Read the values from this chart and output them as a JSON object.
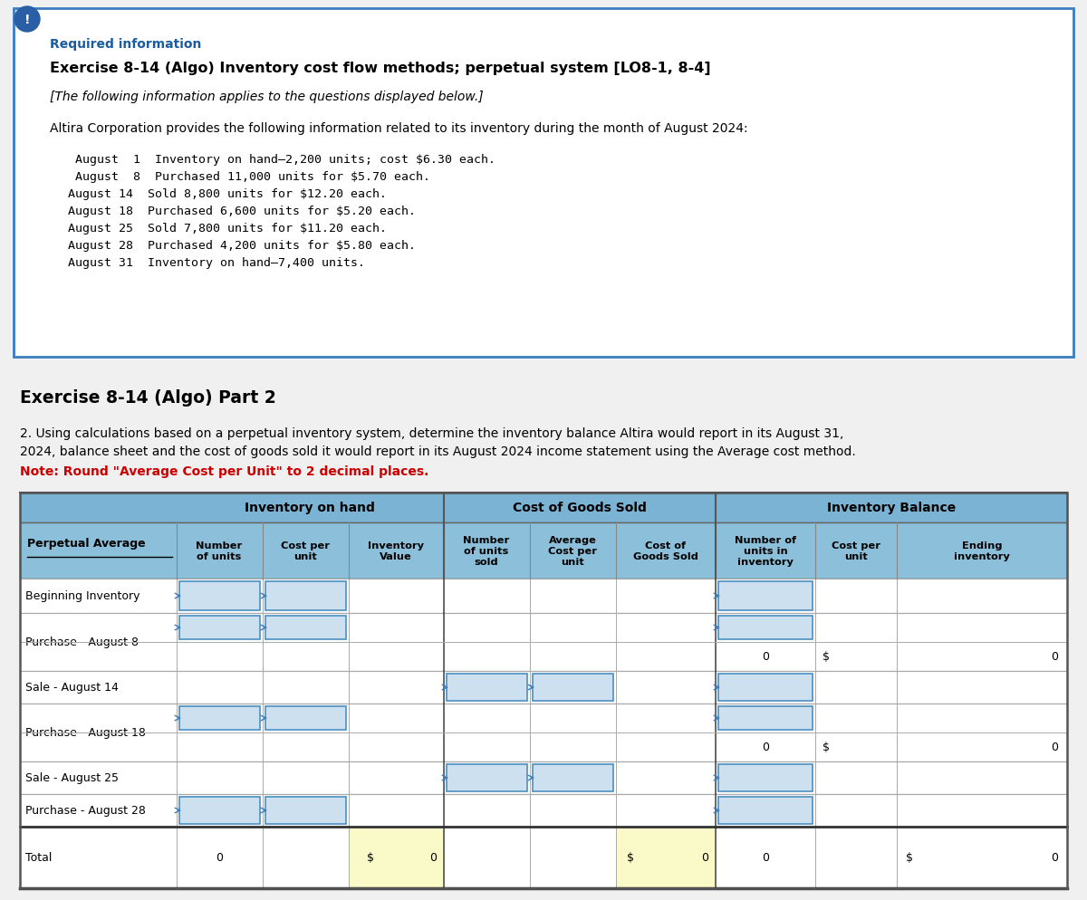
{
  "title_required": "Required information",
  "title_exercise": "Exercise 8-14 (Algo) Inventory cost flow methods; perpetual system [LO8-1, 8-4]",
  "subtitle_italic": "[The following information applies to the questions displayed below.]",
  "intro_text": "Altira Corporation provides the following information related to its inventory during the month of August 2024:",
  "inventory_lines": [
    " August  1  Inventory on hand–2,200 units; cost $6.30 each.",
    " August  8  Purchased 11,000 units for $5.70 each.",
    "August 14  Sold 8,800 units for $12.20 each.",
    "August 18  Purchased 6,600 units for $5.20 each.",
    "August 25  Sold 7,800 units for $11.20 each.",
    "August 28  Purchased 4,200 units for $5.80 each.",
    "August 31  Inventory on hand–7,400 units."
  ],
  "part2_title": "Exercise 8-14 (Algo) Part 2",
  "part2_text_line1": "2. Using calculations based on a perpetual inventory system, determine the inventory balance Altira would report in its August 31,",
  "part2_text_line2": "2024, balance sheet and the cost of goods sold it would report in its August 2024 income statement using the Average cost method.",
  "note_text": "Note: Round \"Average Cost per Unit\" to 2 decimal places.",
  "table_header_row2_cols": [
    "Number\nof units",
    "Cost per\nunit",
    "Inventory\nValue",
    "Number\nof units\nsold",
    "Average\nCost per\nunit",
    "Cost of\nGoods Sold",
    "Number of\nunits in\ninventory",
    "Cost per\nunit",
    "Ending\ninventory"
  ],
  "table_rows": [
    "Beginning Inventory",
    "Purchase - August 8",
    "Sale - August 14",
    "Purchase - August 18",
    "Sale - August 25",
    "Purchase - August 28",
    "Total"
  ],
  "bg_color": "#ffffff",
  "page_bg": "#f0f0f0",
  "header_bg1": "#7ab3d4",
  "header_bg2": "#8bbfda",
  "cell_blue": "#cce0f0",
  "cell_yellow": "#fafac8",
  "text_required": "#1a5ca0",
  "text_red": "#cc0000",
  "border_dark": "#444444",
  "border_light": "#aaaaaa",
  "box_border": "#3a7ebf"
}
